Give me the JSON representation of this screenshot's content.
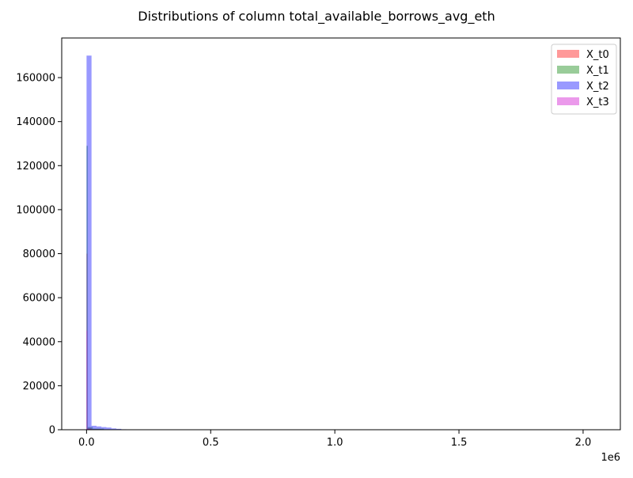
{
  "chart_data": {
    "type": "histogram",
    "title": "Distributions of column total_available_borrows_avg_eth",
    "xlabel": "",
    "ylabel": "",
    "x_offset_label": "1e6",
    "xlim": [
      -100000,
      2150000
    ],
    "ylim": [
      0,
      178000
    ],
    "x_ticks": [
      {
        "value": 0,
        "label": "0.0"
      },
      {
        "value": 500000,
        "label": "0.5"
      },
      {
        "value": 1000000,
        "label": "1.0"
      },
      {
        "value": 1500000,
        "label": "1.5"
      },
      {
        "value": 2000000,
        "label": "2.0"
      }
    ],
    "y_ticks": [
      {
        "value": 0,
        "label": "0"
      },
      {
        "value": 20000,
        "label": "20000"
      },
      {
        "value": 40000,
        "label": "40000"
      },
      {
        "value": 60000,
        "label": "60000"
      },
      {
        "value": 80000,
        "label": "80000"
      },
      {
        "value": 100000,
        "label": "100000"
      },
      {
        "value": 120000,
        "label": "120000"
      },
      {
        "value": 140000,
        "label": "140000"
      },
      {
        "value": 160000,
        "label": "160000"
      }
    ],
    "grid": false,
    "legend_position": "top-right",
    "series": [
      {
        "name": "X_t0",
        "color": "#ff0000",
        "opacity": 0.4,
        "bins": [
          {
            "x0": 0,
            "x1": 3000,
            "count": 80000
          },
          {
            "x0": 3000,
            "x1": 20000,
            "count": 600
          },
          {
            "x0": 20000,
            "x1": 60000,
            "count": 250
          },
          {
            "x0": 60000,
            "x1": 120000,
            "count": 100
          }
        ]
      },
      {
        "name": "X_t1",
        "color": "#008000",
        "opacity": 0.4,
        "bins": [
          {
            "x0": 0,
            "x1": 5000,
            "count": 129000
          },
          {
            "x0": 5000,
            "x1": 25000,
            "count": 1200
          },
          {
            "x0": 25000,
            "x1": 70000,
            "count": 500
          },
          {
            "x0": 70000,
            "x1": 140000,
            "count": 200
          }
        ]
      },
      {
        "name": "X_t2",
        "color": "#0000ff",
        "opacity": 0.4,
        "bins": [
          {
            "x0": 0,
            "x1": 20000,
            "count": 170000
          },
          {
            "x0": 20000,
            "x1": 40000,
            "count": 1800
          },
          {
            "x0": 40000,
            "x1": 60000,
            "count": 1500
          },
          {
            "x0": 60000,
            "x1": 80000,
            "count": 1200
          },
          {
            "x0": 80000,
            "x1": 100000,
            "count": 1000
          },
          {
            "x0": 100000,
            "x1": 120000,
            "count": 600
          },
          {
            "x0": 120000,
            "x1": 140000,
            "count": 400
          },
          {
            "x0": 140000,
            "x1": 160000,
            "count": 200
          }
        ]
      },
      {
        "name": "X_t3",
        "color": "#cc00cc",
        "opacity": 0.4,
        "bins": [
          {
            "x0": 0,
            "x1": 3000,
            "count": 45000
          },
          {
            "x0": 3000,
            "x1": 20000,
            "count": 400
          },
          {
            "x0": 20000,
            "x1": 60000,
            "count": 150
          }
        ]
      }
    ]
  }
}
